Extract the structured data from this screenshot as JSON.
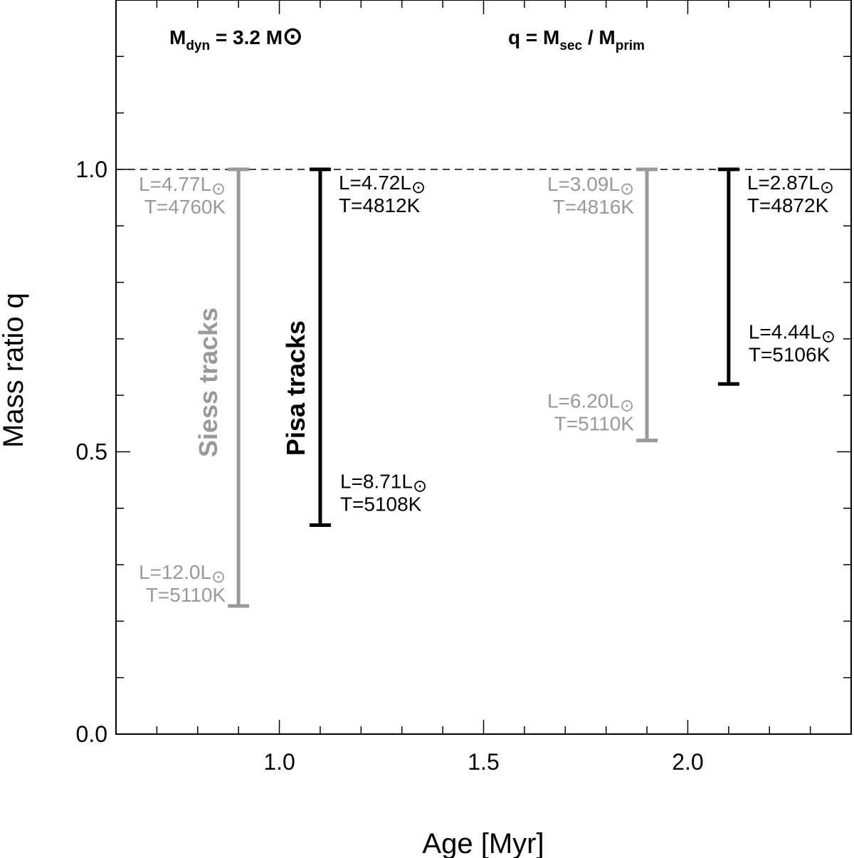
{
  "chart_data": {
    "type": "errorbar",
    "xlabel": "Age [Myr]",
    "ylabel": "Mass ratio q",
    "xlim": [
      0.6,
      2.4
    ],
    "ylim": [
      0.0,
      1.3
    ],
    "x_ticks": [
      {
        "value": 1.0,
        "label": "1.0"
      },
      {
        "value": 1.5,
        "label": "1.5"
      },
      {
        "value": 2.0,
        "label": "2.0"
      }
    ],
    "y_ticks": [
      {
        "value": 0.0,
        "label": "0.0"
      },
      {
        "value": 0.5,
        "label": "0.5"
      },
      {
        "value": 1.0,
        "label": "1.0"
      }
    ],
    "x_minor_step": 0.1,
    "y_minor_step": 0.1,
    "reference_line": {
      "y": 1.0,
      "style": "dashed"
    },
    "annotations": {
      "mdyn": {
        "main": "M",
        "sub": "dyn",
        "rest": " = 3.2 M",
        "sun": "⊙"
      },
      "q_def": {
        "main": "q = M",
        "sub1": "sec",
        "mid": " / M",
        "sub2": "prim"
      }
    },
    "colors": {
      "siess": "#999999",
      "pisa": "#000000"
    },
    "series": [
      {
        "name": "Siess tracks",
        "color": "#999999",
        "bars": [
          {
            "x": 0.9,
            "q_high": 1.0,
            "q_low": 0.227,
            "top_label": {
              "L": "L=4.77L",
              "T": "T=4760K"
            },
            "bottom_label": {
              "L": "L=12.0L",
              "T": "T=5110K"
            }
          },
          {
            "x": 1.9,
            "q_high": 1.0,
            "q_low": 0.52,
            "top_label": {
              "L": "L=3.09L",
              "T": "T=4816K"
            },
            "bottom_label": {
              "L": "L=6.20L",
              "T": "T=5110K"
            }
          }
        ]
      },
      {
        "name": "Pisa tracks",
        "color": "#000000",
        "bars": [
          {
            "x": 1.1,
            "q_high": 1.0,
            "q_low": 0.37,
            "top_label": {
              "L": "L=4.72L",
              "T": "T=4812K"
            },
            "bottom_label": {
              "L": "L=8.71L",
              "T": "T=5108K"
            }
          },
          {
            "x": 2.1,
            "q_high": 1.0,
            "q_low": 0.62,
            "top_label": {
              "L": "L=2.87L",
              "T": "T=4872K"
            },
            "bottom_label": {
              "L": "L=4.44L",
              "T": "T=5106K"
            }
          }
        ]
      }
    ]
  }
}
